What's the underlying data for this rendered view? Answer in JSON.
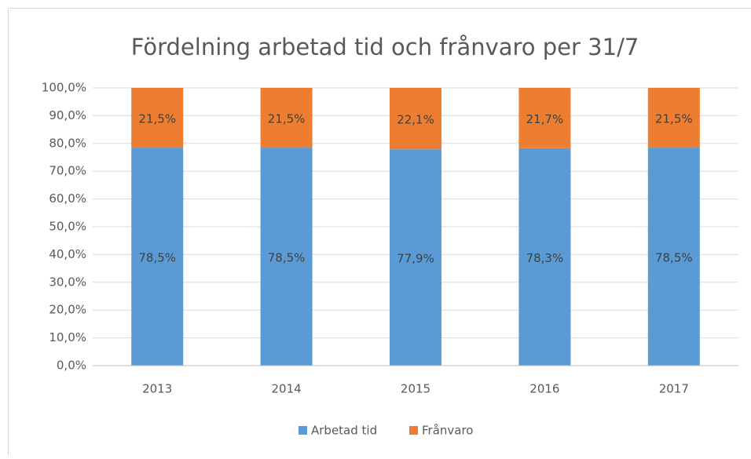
{
  "chart_data": {
    "type": "stacked_bar",
    "title": "Fördelning arbetad tid och frånvaro per 31/7",
    "categories": [
      "2013",
      "2014",
      "2015",
      "2016",
      "2017"
    ],
    "series": [
      {
        "name": "Arbetad tid",
        "color": "#5b9bd5",
        "values": [
          78.5,
          78.5,
          77.9,
          78.3,
          78.5
        ],
        "value_labels": [
          "78,5%",
          "78,5%",
          "77,9%",
          "78,3%",
          "78,5%"
        ]
      },
      {
        "name": "Frånvaro",
        "color": "#ed7d31",
        "values": [
          21.5,
          21.5,
          22.1,
          21.7,
          21.5
        ],
        "value_labels": [
          "21,5%",
          "21,5%",
          "22,1%",
          "21,7%",
          "21,5%"
        ]
      }
    ],
    "ylim": [
      0,
      100
    ],
    "yticks": [
      {
        "value": 0,
        "label": "0,0%"
      },
      {
        "value": 10,
        "label": "10,0%"
      },
      {
        "value": 20,
        "label": "20,0%"
      },
      {
        "value": 30,
        "label": "30,0%"
      },
      {
        "value": 40,
        "label": "40,0%"
      },
      {
        "value": 50,
        "label": "50,0%"
      },
      {
        "value": 60,
        "label": "60,0%"
      },
      {
        "value": 70,
        "label": "70,0%"
      },
      {
        "value": 80,
        "label": "80,0%"
      },
      {
        "value": 90,
        "label": "90,0%"
      },
      {
        "value": 100,
        "label": "100,0%"
      }
    ],
    "grid": true,
    "legend": "bottom"
  }
}
